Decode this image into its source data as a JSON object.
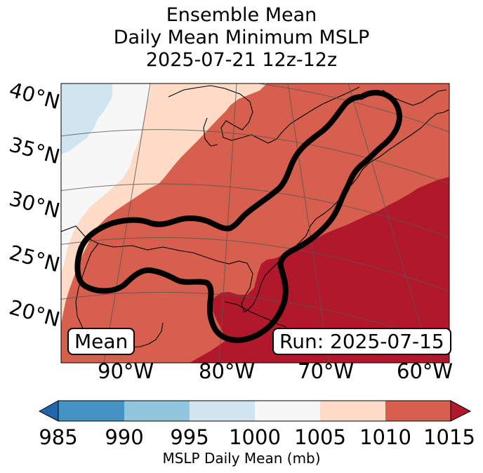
{
  "title": {
    "line1": "Ensemble Mean",
    "line2": "Daily Mean Minimum MSLP",
    "line3": "2025-07-21 12z-12z"
  },
  "map": {
    "lat_labels": [
      "40°N",
      "35°N",
      "30°N",
      "25°N",
      "20°N"
    ],
    "lon_labels": [
      "90°W",
      "80°W",
      "70°W",
      "60°W"
    ],
    "mean_label": "Mean",
    "run_label": "Run: 2025-07-15"
  },
  "colorbar": {
    "ticks": [
      "985",
      "990",
      "995",
      "1000",
      "1005",
      "1010",
      "1015"
    ],
    "label": "MSLP Daily Mean (mb)",
    "colors": {
      "below": "#2166ac",
      "985_990": "#4393c3",
      "990_995": "#92c5de",
      "995_1000": "#d1e5f0",
      "1000_1005": "#f7f7f7",
      "1005_1010": "#fddbc7",
      "1010_1015": "#d6604d",
      "above": "#b2182b"
    }
  }
}
